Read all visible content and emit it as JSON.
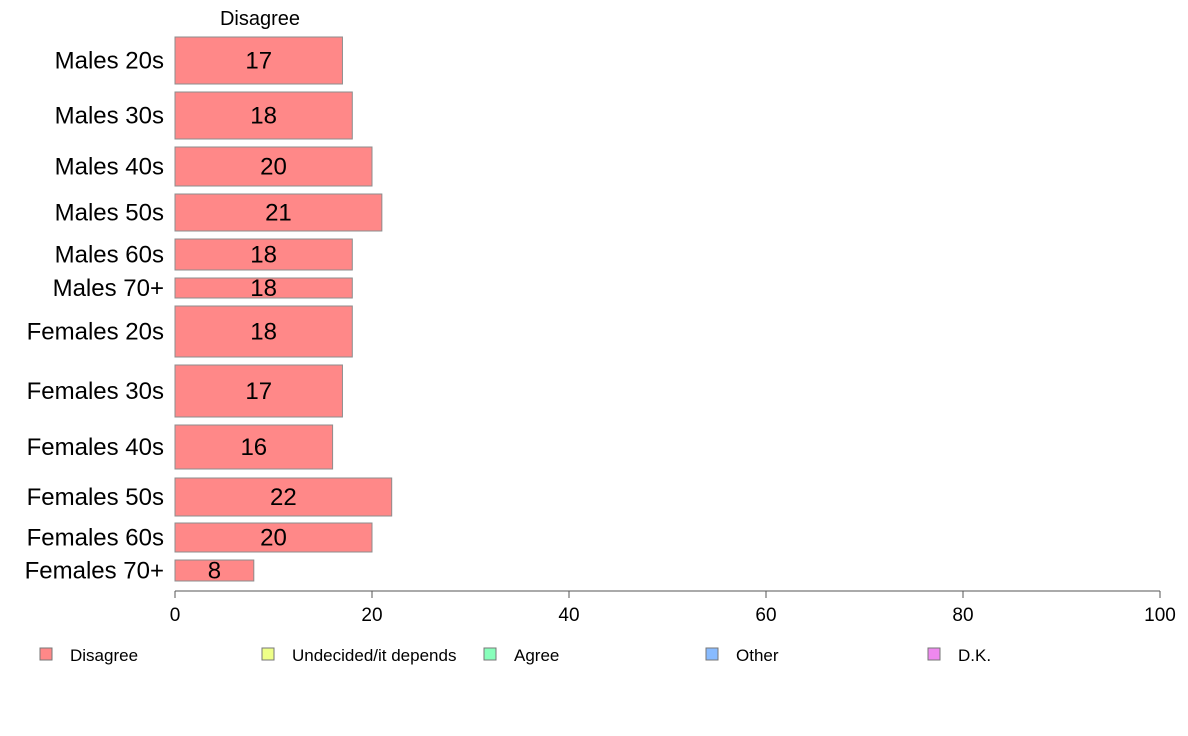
{
  "chart_data": {
    "type": "bar",
    "orientation": "horizontal",
    "stacked": true,
    "series_header": "Disagree",
    "categories": [
      "Males 20s",
      "Males 30s",
      "Males 40s",
      "Males 50s",
      "Males 60s",
      "Males 70+",
      "Females 20s",
      "Females 30s",
      "Females 40s",
      "Females 50s",
      "Females 60s",
      "Females 70+"
    ],
    "series": [
      {
        "name": "Disagree",
        "values": [
          17,
          18,
          20,
          21,
          18,
          18,
          18,
          17,
          16,
          22,
          20,
          8
        ],
        "color": "#ff8888"
      }
    ],
    "xlim": [
      0,
      100
    ],
    "xticks": [
      "0",
      "20",
      "40",
      "60",
      "80",
      "100"
    ],
    "legend": {
      "placement": "bottom",
      "entries": [
        {
          "label": "Disagree",
          "color": "#ff8888"
        },
        {
          "label": "Undecided/it depends",
          "color": "#eeff88"
        },
        {
          "label": "Agree",
          "color": "#88ffbb"
        },
        {
          "label": "Other",
          "color": "#88bbff"
        },
        {
          "label": "D.K.",
          "color": "#ee88ee"
        }
      ]
    },
    "grid": false
  }
}
